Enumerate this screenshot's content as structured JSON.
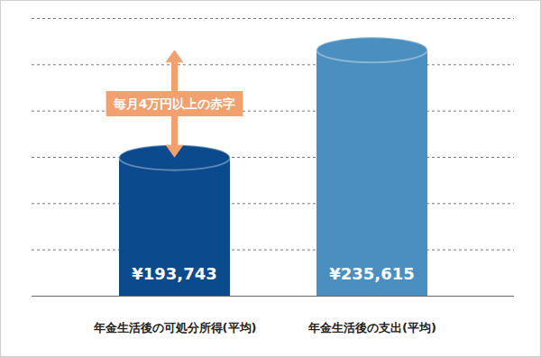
{
  "chart_data": {
    "type": "bar",
    "categories": [
      "年金生活後の可処分所得(平均)",
      "年金生活後の支出(平均)"
    ],
    "values": [
      193743,
      235615
    ],
    "value_labels": [
      "¥193,743",
      "¥235,615"
    ],
    "colors": [
      "#0b4a8c",
      "#4a8fc0"
    ],
    "ylim": [
      140000,
      248000
    ],
    "yticks": [
      140000,
      158000,
      176000,
      194000,
      212000,
      230000,
      248000
    ],
    "grid": true,
    "tick_labels": "x",
    "data_labels": true,
    "annotations": [
      {
        "text": "毎月4万円以上の赤字"
      }
    ]
  }
}
